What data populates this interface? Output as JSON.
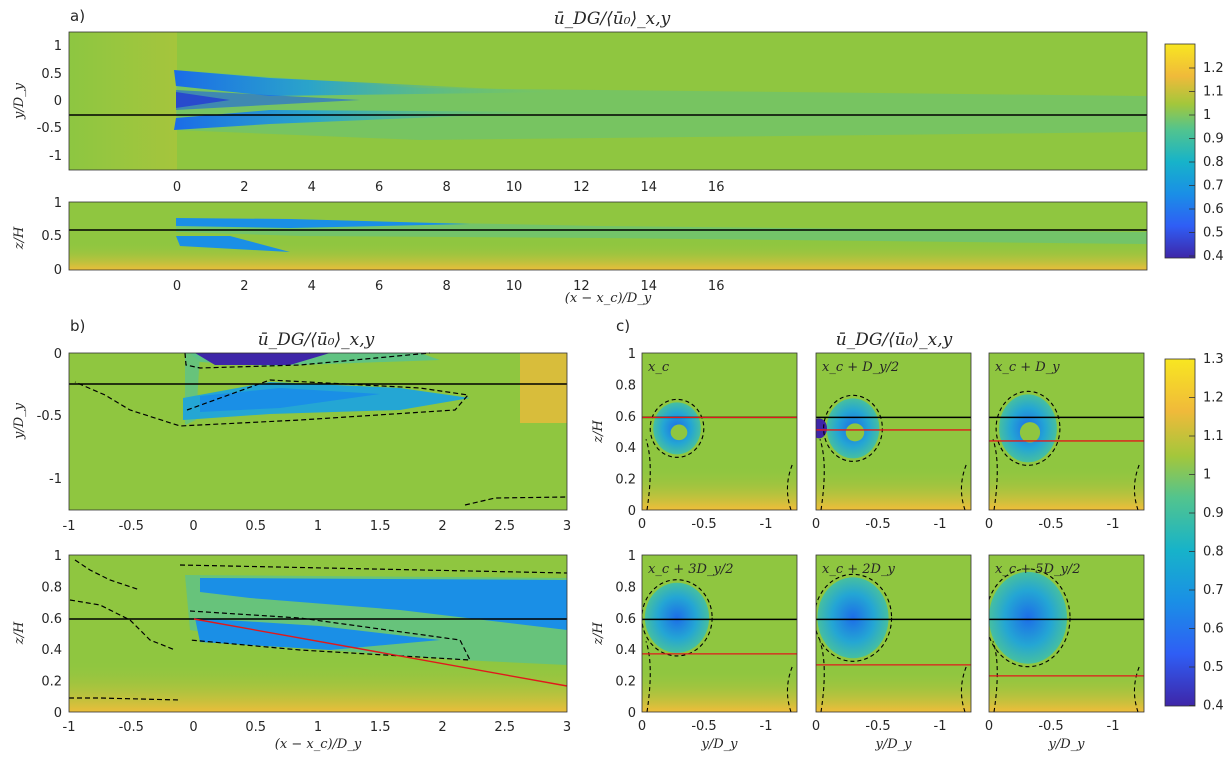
{
  "figure": {
    "panel_a_label": "a)",
    "panel_b_label": "b)",
    "panel_c_label": "c)",
    "title_top": "ū_DG/⟨ū₀⟩_x,y",
    "title_b": "ū_DG/⟨ū₀⟩_x,y",
    "title_c": "ū_DG/⟨ū₀⟩_x,y",
    "colorbar_top_ticks": [
      "1.2",
      "1.1",
      "1",
      "0.9",
      "0.8",
      "0.7",
      "0.6",
      "0.5",
      "0.4"
    ],
    "colorbar_bottom_ticks": [
      "1.3",
      "1.2",
      "1.1",
      "1",
      "0.9",
      "0.8",
      "0.7",
      "0.6",
      "0.5",
      "0.4"
    ],
    "colors": {
      "yellow": "#f8e621",
      "green": "#8fc640",
      "teal": "#22aec9",
      "blue": "#1a63e6",
      "purple": "#3e26a8",
      "black_line": "#000000",
      "red_line": "#e0191b"
    }
  },
  "chart_data": [
    {
      "type": "heatmap",
      "panel": "a) top",
      "title": "ū_DG/⟨ū₀⟩_x,y",
      "ylabel": "y/D_y",
      "yticks": [
        "1",
        "0.5",
        "0",
        "-0.5",
        "-1"
      ],
      "xticks": [
        "0",
        "2",
        "4",
        "6",
        "8",
        "10",
        "12",
        "14",
        "16"
      ],
      "xlim": [
        -2,
        17.9
      ],
      "ylim": [
        -1.25,
        1.25
      ],
      "horizontal_line_y": -0.25,
      "colorbar_range": [
        0.4,
        1.25
      ]
    },
    {
      "type": "heatmap",
      "panel": "a) bottom",
      "ylabel": "z/H",
      "xlabel": "(x − x_c)/D_y",
      "yticks": [
        "1",
        "0.5",
        "0"
      ],
      "xticks": [
        "0",
        "2",
        "4",
        "6",
        "8",
        "10",
        "12",
        "14",
        "16"
      ],
      "xlim": [
        -2,
        17.9
      ],
      "ylim": [
        0,
        1
      ],
      "horizontal_line_z": 0.59
    },
    {
      "type": "heatmap",
      "panel": "b) top",
      "title": "ū_DG/⟨ū₀⟩_x,y",
      "ylabel": "y/D_y",
      "yticks": [
        "0",
        "-0.5",
        "-1"
      ],
      "xlim": [
        -1,
        3
      ],
      "ylim": [
        -1.25,
        0
      ],
      "horizontal_line_y": -0.25
    },
    {
      "type": "heatmap",
      "panel": "b) bottom",
      "ylabel": "z/H",
      "xlabel": "(x − x_c)/D_y",
      "yticks": [
        "1",
        "0.8",
        "0.6",
        "0.4",
        "0.2",
        "0"
      ],
      "xticks": [
        "-1",
        "-0.5",
        "0",
        "0.5",
        "1",
        "1.5",
        "2",
        "2.5",
        "3"
      ],
      "xlim": [
        -1,
        3
      ],
      "ylim": [
        0,
        1
      ],
      "horizontal_line_z": 0.59,
      "red_line": {
        "x": [
          0,
          3
        ],
        "z": [
          0.59,
          0.16
        ]
      }
    },
    {
      "type": "heatmap",
      "panel": "c) cross-sections",
      "title": "ū_DG/⟨ū₀⟩_x,y",
      "ylabel": "z/H",
      "xlabel": "y/D_y",
      "yticks": [
        "1",
        "0.8",
        "0.6",
        "0.4",
        "0.2",
        "0"
      ],
      "xticks": [
        "0",
        "-0.5",
        "-1"
      ],
      "xlim": [
        0,
        -1.25
      ],
      "ylim": [
        0,
        1
      ],
      "black_line_z": 0.59,
      "colorbar_range": [
        0.4,
        1.3
      ],
      "subplots": [
        {
          "label": "x_c",
          "red_line_z": 0.59
        },
        {
          "label": "x_c + D_y/2",
          "red_line_z": 0.51
        },
        {
          "label": "x_c + D_y",
          "red_line_z": 0.44
        },
        {
          "label": "x_c + 3D_y/2",
          "red_line_z": 0.37
        },
        {
          "label": "x_c + 2D_y",
          "red_line_z": 0.3
        },
        {
          "label": "x_c + 5D_y/2",
          "red_line_z": 0.23
        }
      ]
    }
  ]
}
